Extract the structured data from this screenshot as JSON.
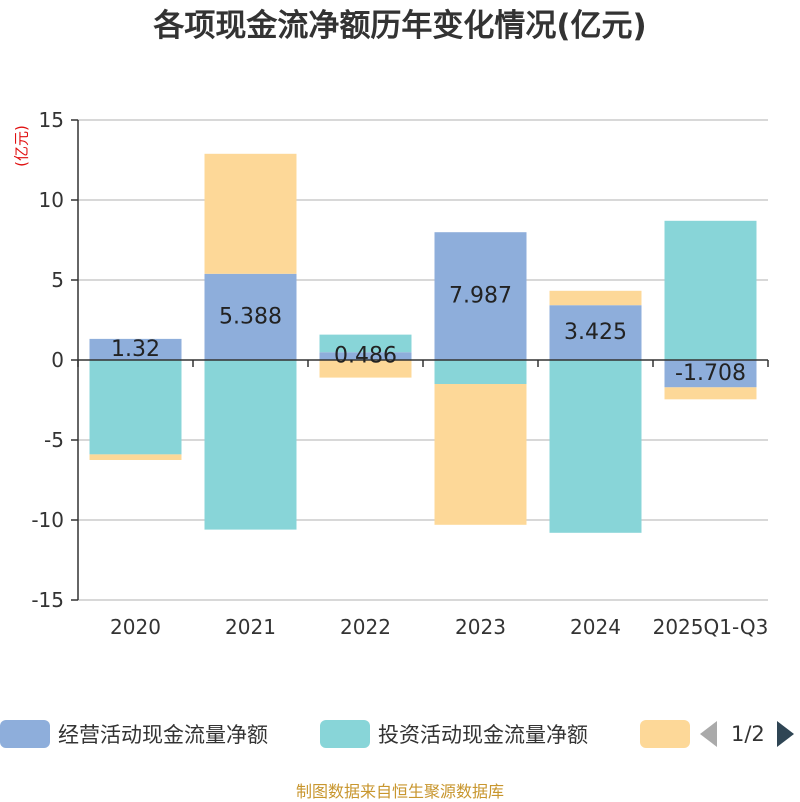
{
  "title": "各项现金流净额历年变化情况(亿元)",
  "unit": "(亿元)",
  "source": "制图数据来自恒生聚源数据库",
  "legend": {
    "items": [
      {
        "label": "经营活动现金流量净额",
        "color": "#8eaedb"
      },
      {
        "label": "投资活动现金流量净额",
        "color": "#88d5d8"
      },
      {
        "label": "",
        "color": "#fdd898"
      }
    ],
    "page": "1/2",
    "prev_icon": "arrow-left-icon",
    "next_icon": "arrow-right-icon"
  },
  "chart_data": {
    "type": "bar",
    "stacked": true,
    "title": "各项现金流净额历年变化情况(亿元)",
    "ylabel": "(亿元)",
    "ylim": [
      -15,
      15
    ],
    "yticks": [
      15,
      10,
      5,
      0,
      -5,
      -10,
      -15
    ],
    "categories": [
      "2020",
      "2021",
      "2022",
      "2023",
      "2024",
      "2025Q1-Q3"
    ],
    "series": [
      {
        "name": "经营活动现金流量净额",
        "color": "#8eaedb",
        "values": [
          1.32,
          5.388,
          0.486,
          7.987,
          3.425,
          -1.708
        ],
        "labels": [
          "1.32",
          "5.388",
          "0.486",
          "7.987",
          "3.425",
          "-1.708"
        ]
      },
      {
        "name": "投资活动现金流量净额",
        "color": "#88d5d8",
        "values": [
          -5.9,
          -10.6,
          1.1,
          -1.5,
          -10.8,
          8.7
        ]
      },
      {
        "name": "",
        "color": "#fdd898",
        "values": [
          -0.35,
          7.5,
          -1.1,
          -8.8,
          0.9,
          -0.75
        ]
      }
    ]
  }
}
